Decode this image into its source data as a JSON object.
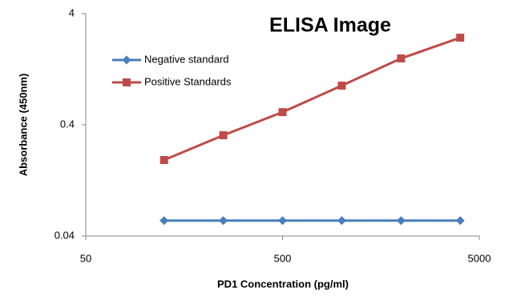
{
  "chart_data": {
    "type": "line",
    "title": "ELISA Image",
    "x_label": "PD1 Concentration (pg/ml)",
    "y_label": "Absorbance (450nm)",
    "x": [
      125,
      250,
      500,
      1000,
      2000,
      4000
    ],
    "series": [
      {
        "name": "Negative standard",
        "color": "#4a7ebb",
        "marker": "diamond",
        "values": [
          0.055,
          0.055,
          0.055,
          0.055,
          0.055,
          0.055
        ]
      },
      {
        "name": "Positive Standards",
        "color": "#be4b48",
        "marker": "square",
        "values": [
          0.193,
          0.322,
          0.52,
          0.9,
          1.58,
          2.43
        ]
      }
    ],
    "xlim": [
      50,
      5000
    ],
    "xticks": [
      50,
      500,
      5000
    ],
    "ylim": [
      0.04,
      4
    ],
    "yticks": [
      0.04,
      0.4,
      4
    ],
    "xscale": "log",
    "yscale": "log",
    "grid": false,
    "legend": "upper left"
  }
}
